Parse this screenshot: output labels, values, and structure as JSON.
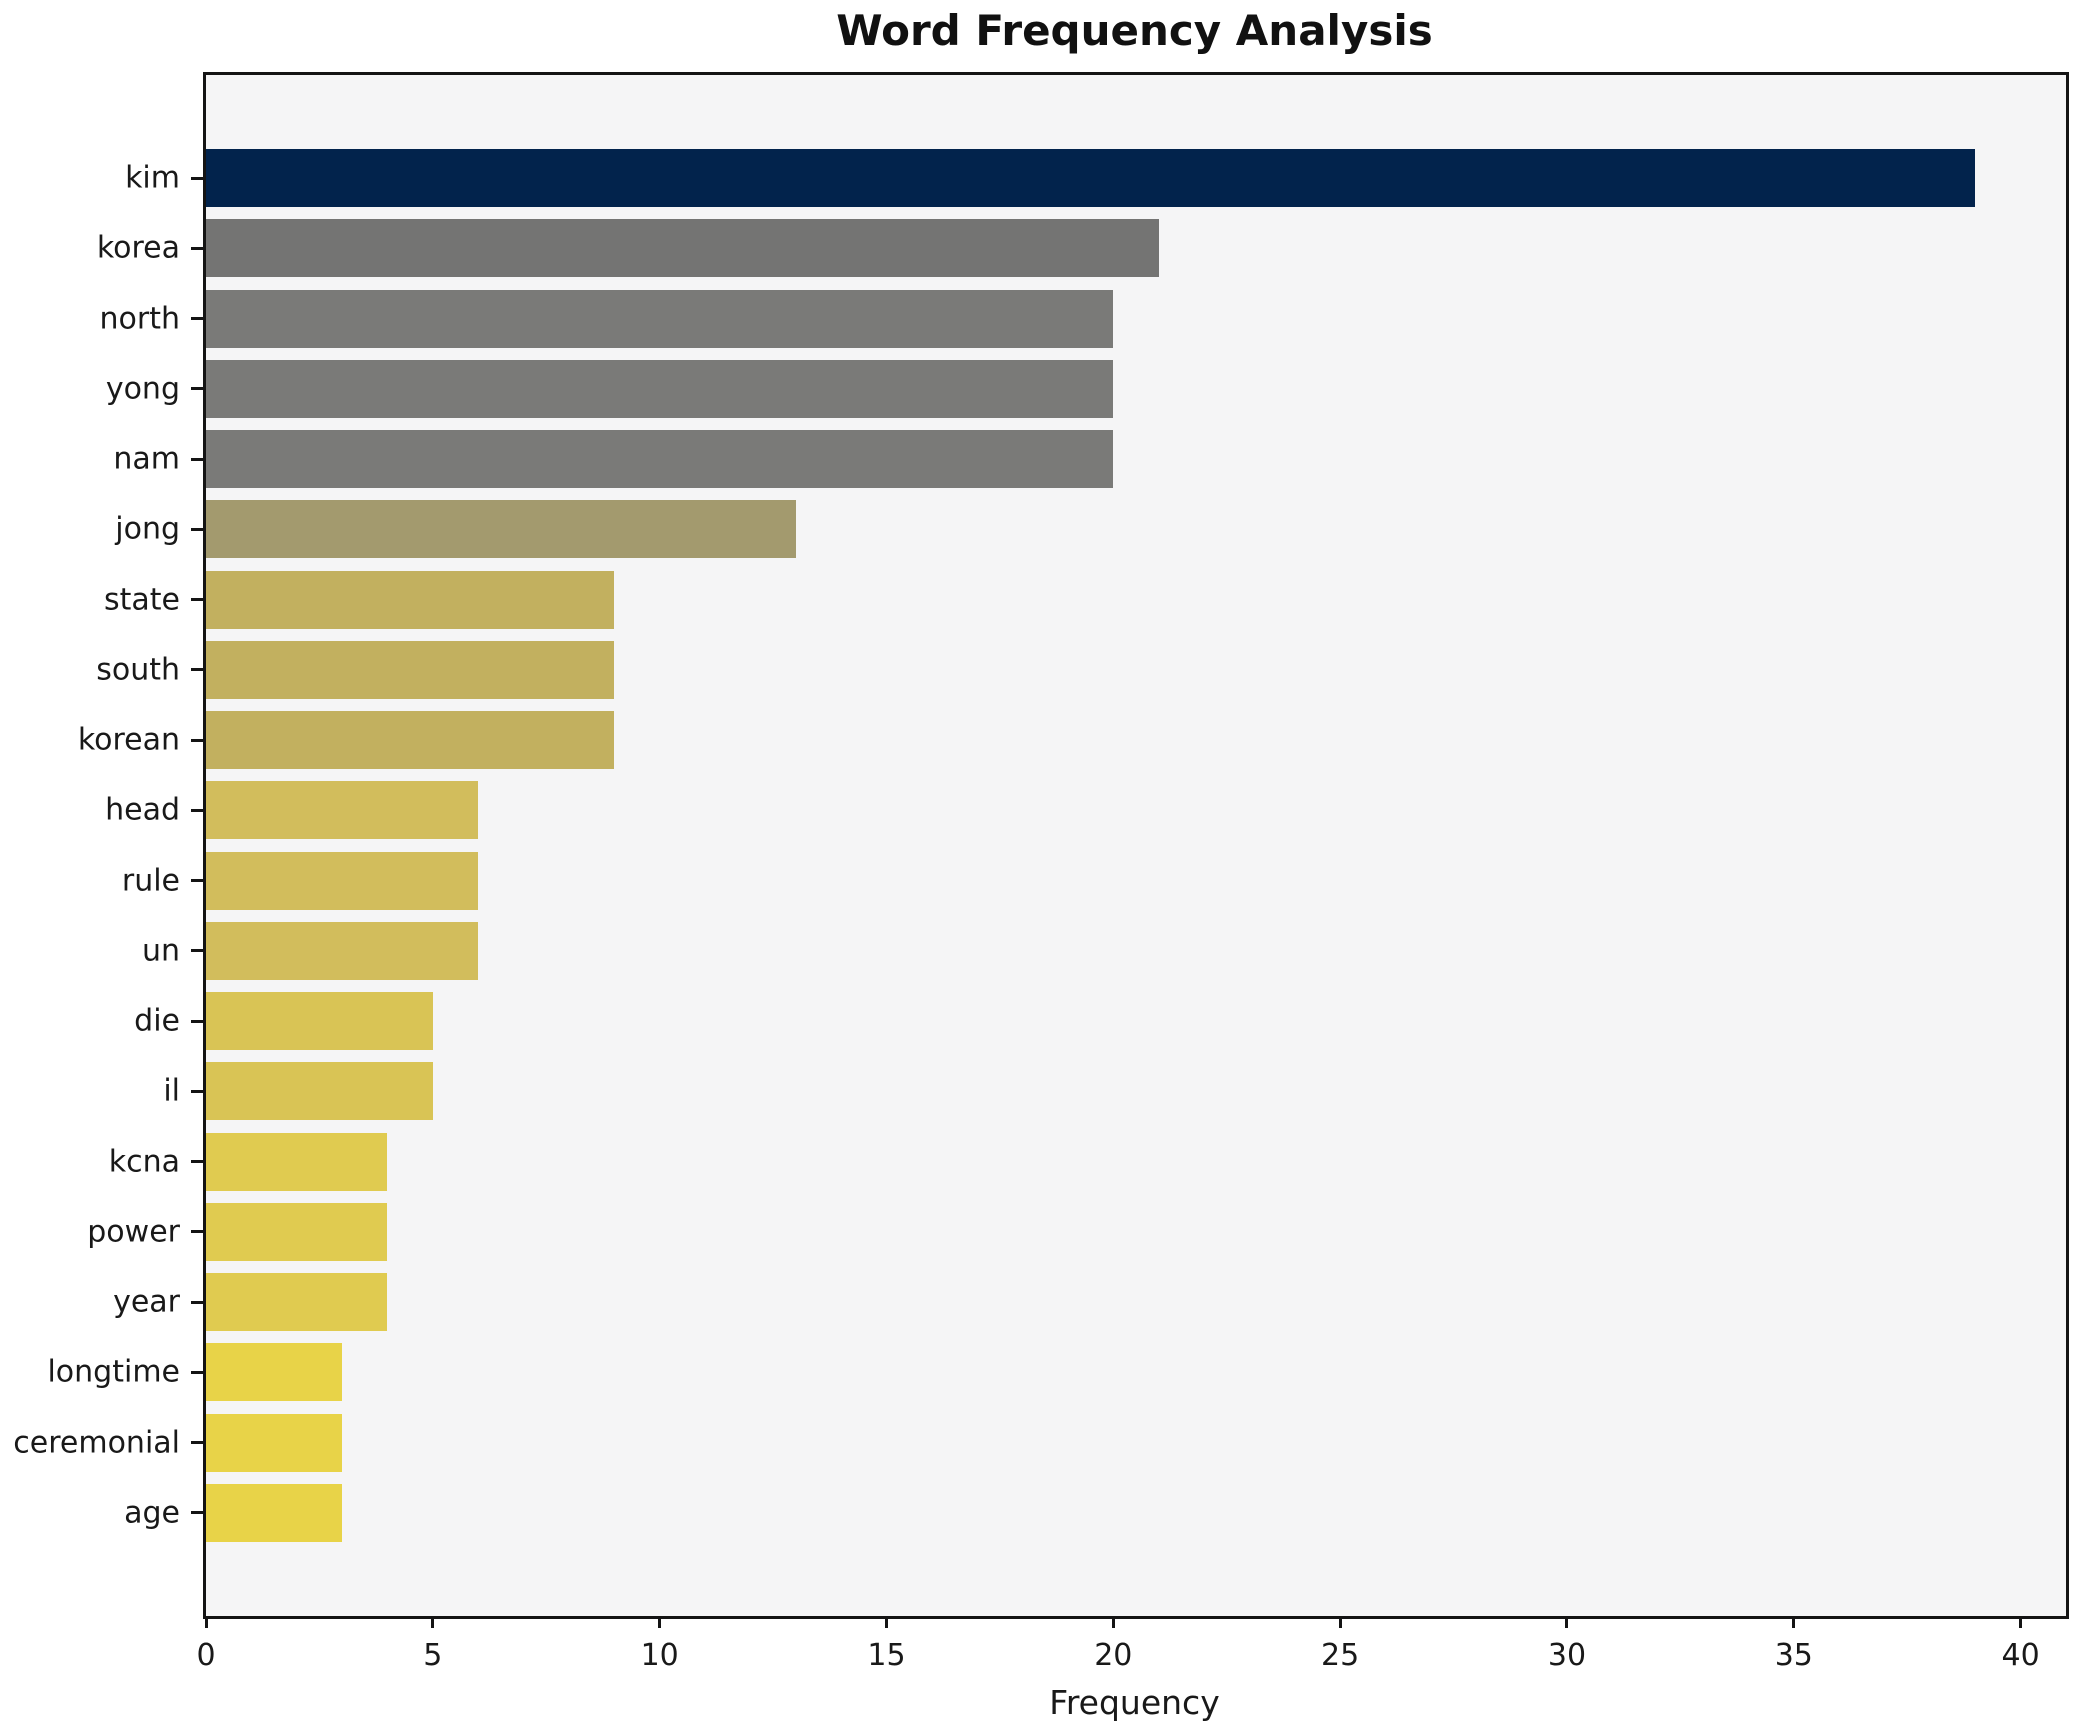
{
  "title": "Word Frequency Analysis",
  "xlabel": "Frequency",
  "chart_data": {
    "type": "bar",
    "orientation": "horizontal",
    "title": "Word Frequency Analysis",
    "xlabel": "Frequency",
    "ylabel": "",
    "categories": [
      "kim",
      "korea",
      "north",
      "yong",
      "nam",
      "jong",
      "state",
      "south",
      "korean",
      "head",
      "rule",
      "un",
      "die",
      "il",
      "kcna",
      "power",
      "year",
      "longtime",
      "ceremonial",
      "age"
    ],
    "values": [
      39,
      21,
      20,
      20,
      20,
      13,
      9,
      9,
      9,
      6,
      6,
      6,
      5,
      5,
      4,
      4,
      4,
      3,
      3,
      3
    ],
    "bar_colors": [
      "#02234c",
      "#747473",
      "#7a7a78",
      "#7a7a78",
      "#7a7a78",
      "#a39a6e",
      "#c2b05f",
      "#c2b05f",
      "#c2b05f",
      "#d2bd5c",
      "#d2bd5c",
      "#d2bd5c",
      "#d9c455",
      "#d9c455",
      "#e0cb50",
      "#e0cb50",
      "#e0cb50",
      "#e8d348",
      "#e8d348",
      "#e8d348"
    ],
    "xlim": [
      0,
      41
    ],
    "xticks": [
      0,
      5,
      10,
      15,
      20,
      25,
      30,
      35,
      40
    ],
    "grid": false,
    "legend": null,
    "colormap": "cividis-reversed-by-value",
    "plot_bg": "#f5f5f6",
    "fig_bg": "#ffffff",
    "spine_color": "#141414"
  }
}
